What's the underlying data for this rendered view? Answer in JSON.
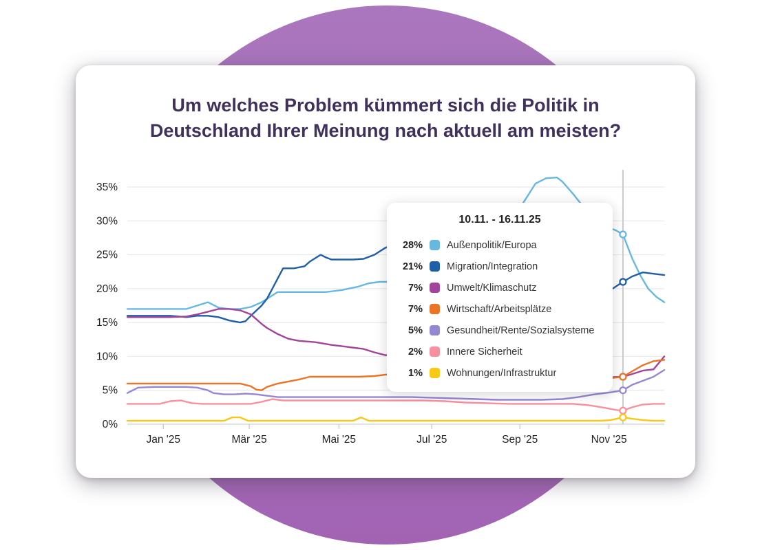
{
  "page": {
    "blob_color_top": "#aa76bd",
    "blob_color_bottom": "#a263b3",
    "card_background": "#ffffff",
    "title_color": "#40315c"
  },
  "card": {
    "title_line1": "Um welches Problem kümmert sich die Politik in",
    "title_line2": "Deutschland Ihrer Meinung nach aktuell am meisten?"
  },
  "chart_data": {
    "type": "line",
    "title": "Um welches Problem kümmert sich die Politik in Deutschland Ihrer Meinung nach aktuell am meisten?",
    "xlabel": "",
    "ylabel": "",
    "ylim": [
      0,
      35
    ],
    "grid": "horizontal",
    "hover_x": 92.3,
    "y_ticks": [
      {
        "v": 0,
        "label": "0%"
      },
      {
        "v": 5,
        "label": "5%"
      },
      {
        "v": 10,
        "label": "10%"
      },
      {
        "v": 15,
        "label": "15%"
      },
      {
        "v": 20,
        "label": "20%"
      },
      {
        "v": 25,
        "label": "25%"
      },
      {
        "v": 30,
        "label": "30%"
      },
      {
        "v": 35,
        "label": "35%"
      }
    ],
    "x_ticks": [
      {
        "x": 6.7,
        "label": "Jan '25"
      },
      {
        "x": 22.7,
        "label": "Mär '25"
      },
      {
        "x": 39.4,
        "label": "Mai '25"
      },
      {
        "x": 56.7,
        "label": "Jul '25"
      },
      {
        "x": 73.1,
        "label": "Sep '25"
      },
      {
        "x": 89.7,
        "label": "Nov '25"
      }
    ],
    "tooltip": {
      "title": "10.11. - 16.11.25"
    },
    "series": [
      {
        "name": "Außenpolitik/Europa",
        "color": "#67b7e3",
        "hover_value_label": "28%",
        "points": [
          [
            0,
            17
          ],
          [
            4,
            17
          ],
          [
            8,
            17
          ],
          [
            11,
            17
          ],
          [
            13,
            17.5
          ],
          [
            15,
            18
          ],
          [
            17,
            17.2
          ],
          [
            19,
            17
          ],
          [
            21,
            17
          ],
          [
            23,
            17.3
          ],
          [
            25,
            18
          ],
          [
            27,
            19
          ],
          [
            28,
            19.5
          ],
          [
            31,
            19.5
          ],
          [
            34,
            19.5
          ],
          [
            37,
            19.5
          ],
          [
            40,
            19.8
          ],
          [
            43,
            20.3
          ],
          [
            45,
            20.8
          ],
          [
            47,
            21
          ],
          [
            50,
            21
          ],
          [
            53,
            21.2
          ],
          [
            56,
            21.5
          ],
          [
            59,
            22
          ],
          [
            62,
            22.8
          ],
          [
            65,
            24
          ],
          [
            68,
            26
          ],
          [
            70,
            28
          ],
          [
            72,
            30.5
          ],
          [
            74,
            33
          ],
          [
            76,
            35.5
          ],
          [
            78,
            36.3
          ],
          [
            80,
            36.4
          ],
          [
            81,
            35.8
          ],
          [
            83,
            34
          ],
          [
            85,
            32
          ],
          [
            87,
            30.3
          ],
          [
            89,
            29.2
          ],
          [
            91,
            28.6
          ],
          [
            92.3,
            28
          ],
          [
            94,
            24.5
          ],
          [
            95.5,
            22
          ],
          [
            97,
            20
          ],
          [
            98.5,
            18.8
          ],
          [
            100,
            18
          ]
        ]
      },
      {
        "name": "Migration/Integration",
        "color": "#1e5fa8",
        "hover_value_label": "21%",
        "points": [
          [
            0,
            16
          ],
          [
            4,
            16
          ],
          [
            8,
            16
          ],
          [
            11,
            15.8
          ],
          [
            13,
            16
          ],
          [
            15,
            16
          ],
          [
            17,
            15.8
          ],
          [
            19,
            15.3
          ],
          [
            21,
            15
          ],
          [
            22,
            15.2
          ],
          [
            23,
            16
          ],
          [
            25,
            17.5
          ],
          [
            26,
            18.5
          ],
          [
            27,
            20
          ],
          [
            28,
            21.5
          ],
          [
            29,
            23
          ],
          [
            31,
            23
          ],
          [
            33,
            23.3
          ],
          [
            34,
            24
          ],
          [
            35,
            24.5
          ],
          [
            36,
            25
          ],
          [
            37,
            24.6
          ],
          [
            38,
            24.3
          ],
          [
            40,
            24.3
          ],
          [
            42,
            24.3
          ],
          [
            44,
            24.4
          ],
          [
            46,
            25
          ],
          [
            47,
            25.5
          ],
          [
            48,
            26
          ],
          [
            50,
            26.7
          ],
          [
            52,
            27.3
          ],
          [
            55,
            27.5
          ],
          [
            58,
            26.5
          ],
          [
            62,
            25
          ],
          [
            66,
            23.5
          ],
          [
            70,
            22
          ],
          [
            74,
            20.5
          ],
          [
            78,
            19.5
          ],
          [
            82,
            18.8
          ],
          [
            85,
            18.6
          ],
          [
            88,
            19
          ],
          [
            90,
            19.8
          ],
          [
            92.3,
            21
          ],
          [
            94,
            21.8
          ],
          [
            96,
            22.4
          ],
          [
            98,
            22.2
          ],
          [
            100,
            22
          ]
        ]
      },
      {
        "name": "Umwelt/Klimaschutz",
        "color": "#a2439c",
        "hover_value_label": "7%",
        "points": [
          [
            0,
            15.8
          ],
          [
            4,
            15.8
          ],
          [
            8,
            15.8
          ],
          [
            11,
            15.9
          ],
          [
            13,
            16.2
          ],
          [
            15,
            16.6
          ],
          [
            17,
            17
          ],
          [
            19,
            17
          ],
          [
            21,
            16.8
          ],
          [
            23,
            16.2
          ],
          [
            24,
            15.5
          ],
          [
            25,
            14.8
          ],
          [
            26,
            14.2
          ],
          [
            28,
            13.3
          ],
          [
            30,
            12.6
          ],
          [
            32,
            12.3
          ],
          [
            35,
            12.1
          ],
          [
            38,
            11.7
          ],
          [
            41,
            11.4
          ],
          [
            44,
            11.1
          ],
          [
            46,
            10.6
          ],
          [
            48,
            10.2
          ],
          [
            51,
            10
          ],
          [
            55,
            9.6
          ],
          [
            59,
            9.2
          ],
          [
            63,
            8.8
          ],
          [
            67,
            8.4
          ],
          [
            71,
            8
          ],
          [
            75,
            7.7
          ],
          [
            79,
            7.3
          ],
          [
            83,
            7
          ],
          [
            86,
            6.9
          ],
          [
            89,
            6.9
          ],
          [
            92.3,
            7
          ],
          [
            94,
            7.4
          ],
          [
            96,
            7.9
          ],
          [
            98,
            8.1
          ],
          [
            100,
            10
          ]
        ]
      },
      {
        "name": "Wirtschaft/Arbeitsplätze",
        "color": "#ec7424",
        "hover_value_label": "7%",
        "points": [
          [
            0,
            6
          ],
          [
            5,
            6
          ],
          [
            10,
            6
          ],
          [
            14,
            6
          ],
          [
            18,
            6
          ],
          [
            21,
            6
          ],
          [
            23,
            5.6
          ],
          [
            24,
            5.1
          ],
          [
            25,
            5
          ],
          [
            26,
            5.5
          ],
          [
            28,
            6
          ],
          [
            30,
            6.3
          ],
          [
            32,
            6.6
          ],
          [
            34,
            7
          ],
          [
            37,
            7
          ],
          [
            40,
            7
          ],
          [
            43,
            7
          ],
          [
            46,
            7.1
          ],
          [
            49,
            7.4
          ],
          [
            52,
            7.5
          ],
          [
            56,
            7.5
          ],
          [
            60,
            7.5
          ],
          [
            64,
            7.5
          ],
          [
            68,
            7.5
          ],
          [
            72,
            7.4
          ],
          [
            76,
            7.2
          ],
          [
            80,
            7
          ],
          [
            84,
            6.9
          ],
          [
            87,
            6.7
          ],
          [
            90,
            6.8
          ],
          [
            92.3,
            7
          ],
          [
            94,
            7.8
          ],
          [
            96,
            8.7
          ],
          [
            98,
            9.3
          ],
          [
            100,
            9.5
          ]
        ]
      },
      {
        "name": "Gesundheit/Rente/Sozialsysteme",
        "color": "#9488d3",
        "hover_value_label": "5%",
        "points": [
          [
            0,
            4.6
          ],
          [
            2,
            5.4
          ],
          [
            5,
            5.5
          ],
          [
            8,
            5.5
          ],
          [
            11,
            5.5
          ],
          [
            13,
            5.4
          ],
          [
            15,
            5
          ],
          [
            16,
            4.6
          ],
          [
            18,
            4.4
          ],
          [
            20,
            4.4
          ],
          [
            22,
            4.5
          ],
          [
            24,
            4.4
          ],
          [
            26,
            4.2
          ],
          [
            28,
            4
          ],
          [
            31,
            4
          ],
          [
            34,
            4
          ],
          [
            37,
            4
          ],
          [
            40,
            4
          ],
          [
            43,
            4
          ],
          [
            46,
            4
          ],
          [
            49,
            4
          ],
          [
            53,
            4
          ],
          [
            57,
            3.9
          ],
          [
            61,
            3.8
          ],
          [
            65,
            3.7
          ],
          [
            69,
            3.6
          ],
          [
            73,
            3.6
          ],
          [
            77,
            3.6
          ],
          [
            81,
            3.7
          ],
          [
            84,
            4
          ],
          [
            87,
            4.4
          ],
          [
            90,
            4.7
          ],
          [
            92.3,
            5
          ],
          [
            94,
            5.8
          ],
          [
            96,
            6.4
          ],
          [
            98,
            7
          ],
          [
            100,
            8
          ]
        ]
      },
      {
        "name": "Innere Sicherheit",
        "color": "#f9909f",
        "hover_value_label": "2%",
        "points": [
          [
            0,
            3
          ],
          [
            3,
            3
          ],
          [
            6,
            3
          ],
          [
            8,
            3.4
          ],
          [
            10,
            3.5
          ],
          [
            12,
            3.1
          ],
          [
            14,
            3
          ],
          [
            17,
            3
          ],
          [
            20,
            3
          ],
          [
            23,
            3
          ],
          [
            25,
            3.3
          ],
          [
            27,
            3.7
          ],
          [
            29,
            3.5
          ],
          [
            32,
            3.5
          ],
          [
            35,
            3.5
          ],
          [
            38,
            3.5
          ],
          [
            41,
            3.5
          ],
          [
            44,
            3.5
          ],
          [
            47,
            3.5
          ],
          [
            51,
            3.5
          ],
          [
            55,
            3.5
          ],
          [
            59,
            3.4
          ],
          [
            63,
            3.2
          ],
          [
            67,
            3.1
          ],
          [
            71,
            3
          ],
          [
            75,
            3
          ],
          [
            79,
            3
          ],
          [
            83,
            3
          ],
          [
            86,
            2.8
          ],
          [
            89,
            2.4
          ],
          [
            91,
            2.1
          ],
          [
            92.3,
            2
          ],
          [
            94,
            2.5
          ],
          [
            96,
            2.9
          ],
          [
            98,
            3
          ],
          [
            100,
            3
          ]
        ]
      },
      {
        "name": "Wohnungen/Infrastruktur",
        "color": "#f9c716",
        "hover_value_label": "1%",
        "points": [
          [
            0,
            0.5
          ],
          [
            5,
            0.5
          ],
          [
            10,
            0.5
          ],
          [
            15,
            0.5
          ],
          [
            18,
            0.5
          ],
          [
            19.5,
            1
          ],
          [
            21,
            1
          ],
          [
            22.5,
            0.5
          ],
          [
            27,
            0.5
          ],
          [
            32,
            0.5
          ],
          [
            38,
            0.5
          ],
          [
            42,
            0.5
          ],
          [
            43.5,
            1
          ],
          [
            45,
            0.5
          ],
          [
            50,
            0.5
          ],
          [
            56,
            0.5
          ],
          [
            62,
            0.5
          ],
          [
            68,
            0.5
          ],
          [
            74,
            0.5
          ],
          [
            80,
            0.5
          ],
          [
            85,
            0.5
          ],
          [
            88,
            0.5
          ],
          [
            90,
            0.6
          ],
          [
            92.3,
            1
          ],
          [
            94,
            0.8
          ],
          [
            96,
            0.6
          ],
          [
            98,
            0.5
          ],
          [
            100,
            0.5
          ]
        ]
      }
    ]
  }
}
